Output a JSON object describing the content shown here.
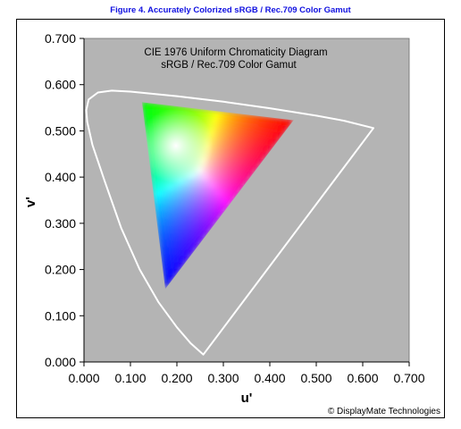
{
  "figure_title": "Figure 4.  Accurately Colorized sRGB / Rec.709 Color Gamut",
  "copyright": "© DisplayMate Technologies",
  "colors": {
    "figure_title": "#1010e0",
    "plot_background": "#b4b4b4",
    "locus_line": "#ffffff"
  },
  "chart_data": {
    "type": "scatter",
    "title": "CIE 1976 Uniform Chromaticity Diagram",
    "subtitle": "sRGB / Rec.709 Color Gamut",
    "xlabel": "u'",
    "ylabel": "v'",
    "xlim": [
      0,
      0.7
    ],
    "ylim": [
      0,
      0.7
    ],
    "x_tick_labels": [
      "0.000",
      "0.100",
      "0.200",
      "0.300",
      "0.400",
      "0.500",
      "0.600",
      "0.700"
    ],
    "y_tick_labels": [
      "0.000",
      "0.100",
      "0.200",
      "0.300",
      "0.400",
      "0.500",
      "0.600",
      "0.700"
    ],
    "grid": false,
    "series": [
      {
        "kind": "spectral-locus-outline",
        "points": [
          [
            0.257,
            0.016
          ],
          [
            0.23,
            0.04
          ],
          [
            0.2,
            0.075
          ],
          [
            0.16,
            0.13
          ],
          [
            0.12,
            0.2
          ],
          [
            0.08,
            0.29
          ],
          [
            0.045,
            0.39
          ],
          [
            0.018,
            0.47
          ],
          [
            0.007,
            0.52
          ],
          [
            0.005,
            0.545
          ],
          [
            0.01,
            0.568
          ],
          [
            0.03,
            0.583
          ],
          [
            0.06,
            0.587
          ],
          [
            0.1,
            0.585
          ],
          [
            0.2,
            0.575
          ],
          [
            0.3,
            0.563
          ],
          [
            0.4,
            0.549
          ],
          [
            0.5,
            0.533
          ],
          [
            0.56,
            0.522
          ],
          [
            0.623,
            0.506
          ],
          [
            0.257,
            0.016
          ]
        ]
      },
      {
        "kind": "srgb-gamut-triangle",
        "points": [
          {
            "name": "R",
            "u": 0.451,
            "v": 0.523,
            "color": "#ff0000"
          },
          {
            "name": "G",
            "u": 0.125,
            "v": 0.562,
            "color": "#00ff00"
          },
          {
            "name": "B",
            "u": 0.175,
            "v": 0.158,
            "color": "#0000ff"
          }
        ],
        "white_point": {
          "u": 0.198,
          "v": 0.468
        }
      }
    ]
  }
}
